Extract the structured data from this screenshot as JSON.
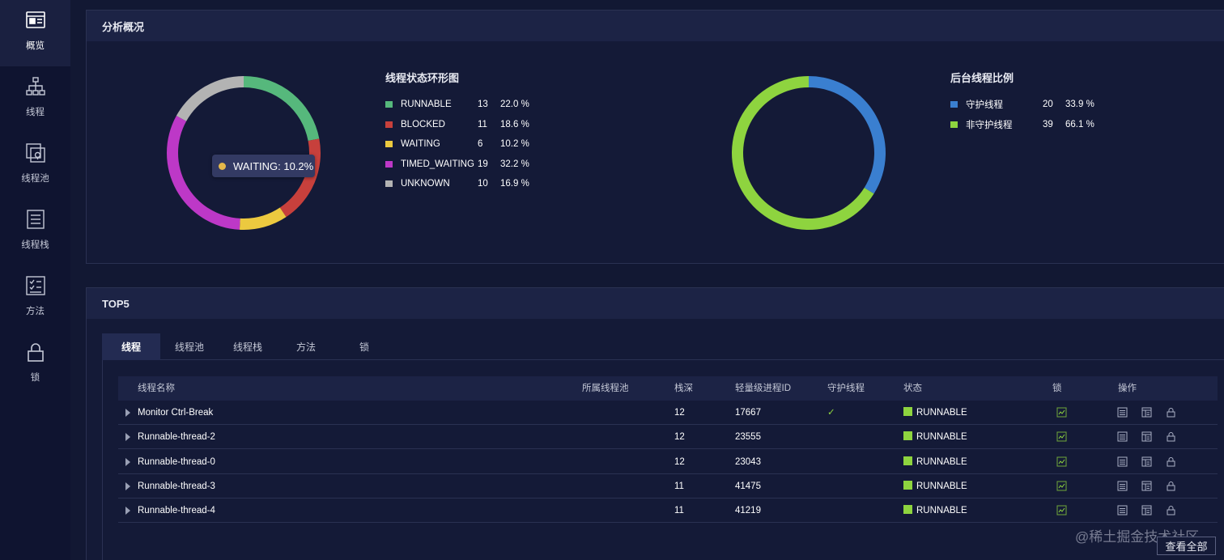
{
  "sidebar": {
    "items": [
      {
        "label": "概览",
        "icon": "overview-icon",
        "active": true
      },
      {
        "label": "线程",
        "icon": "thread-tree-icon",
        "active": false
      },
      {
        "label": "线程池",
        "icon": "thread-pool-icon",
        "active": false
      },
      {
        "label": "线程栈",
        "icon": "thread-stack-icon",
        "active": false
      },
      {
        "label": "方法",
        "icon": "method-checklist-icon",
        "active": false
      },
      {
        "label": "锁",
        "icon": "lock-icon",
        "active": false
      }
    ]
  },
  "overview": {
    "title": "分析概况",
    "state_chart": {
      "title": "线程状态环形图",
      "tooltip": "WAITING: 10.2%"
    },
    "daemon_chart": {
      "title": "后台线程比例"
    }
  },
  "chart_data": [
    {
      "type": "pie",
      "title": "线程状态环形图",
      "categories": [
        "RUNNABLE",
        "BLOCKED",
        "WAITING",
        "TIMED_WAITING",
        "UNKNOWN"
      ],
      "values": [
        13,
        11,
        6,
        19,
        10
      ],
      "percents": [
        "22.0 %",
        "18.6 %",
        "10.2 %",
        "32.2 %",
        "16.9 %"
      ],
      "colors": [
        "#56b87c",
        "#c7403c",
        "#ecc93f",
        "#bd38c7",
        "#b3b3b3"
      ],
      "legend": "right"
    },
    {
      "type": "pie",
      "title": "后台线程比例",
      "categories": [
        "守护线程",
        "非守护线程"
      ],
      "values": [
        20,
        39
      ],
      "percents": [
        "33.9 %",
        "66.1 %"
      ],
      "colors": [
        "#3a7fd0",
        "#8ed43f"
      ],
      "legend": "right"
    }
  ],
  "top5": {
    "title": "TOP5",
    "tabs": [
      "线程",
      "线程池",
      "线程栈",
      "方法",
      "锁"
    ],
    "active_tab": 0,
    "columns": {
      "name": "线程名称",
      "pool": "所属线程池",
      "depth": "栈深",
      "lwp": "轻量级进程ID",
      "daemon": "守护线程",
      "state": "状态",
      "lock": "锁",
      "actions": "操作"
    },
    "rows": [
      {
        "name": "Monitor Ctrl-Break",
        "pool": "",
        "depth": "12",
        "lwp": "17667",
        "daemon": "✓",
        "state": "RUNNABLE"
      },
      {
        "name": "Runnable-thread-2",
        "pool": "",
        "depth": "12",
        "lwp": "23555",
        "daemon": "",
        "state": "RUNNABLE"
      },
      {
        "name": "Runnable-thread-0",
        "pool": "",
        "depth": "12",
        "lwp": "23043",
        "daemon": "",
        "state": "RUNNABLE"
      },
      {
        "name": "Runnable-thread-3",
        "pool": "",
        "depth": "11",
        "lwp": "41475",
        "daemon": "",
        "state": "RUNNABLE"
      },
      {
        "name": "Runnable-thread-4",
        "pool": "",
        "depth": "11",
        "lwp": "41219",
        "daemon": "",
        "state": "RUNNABLE"
      }
    ],
    "state_color": "#8ed43f",
    "view_all_label": "查看全部"
  },
  "watermark": "@稀土掘金技术社区"
}
